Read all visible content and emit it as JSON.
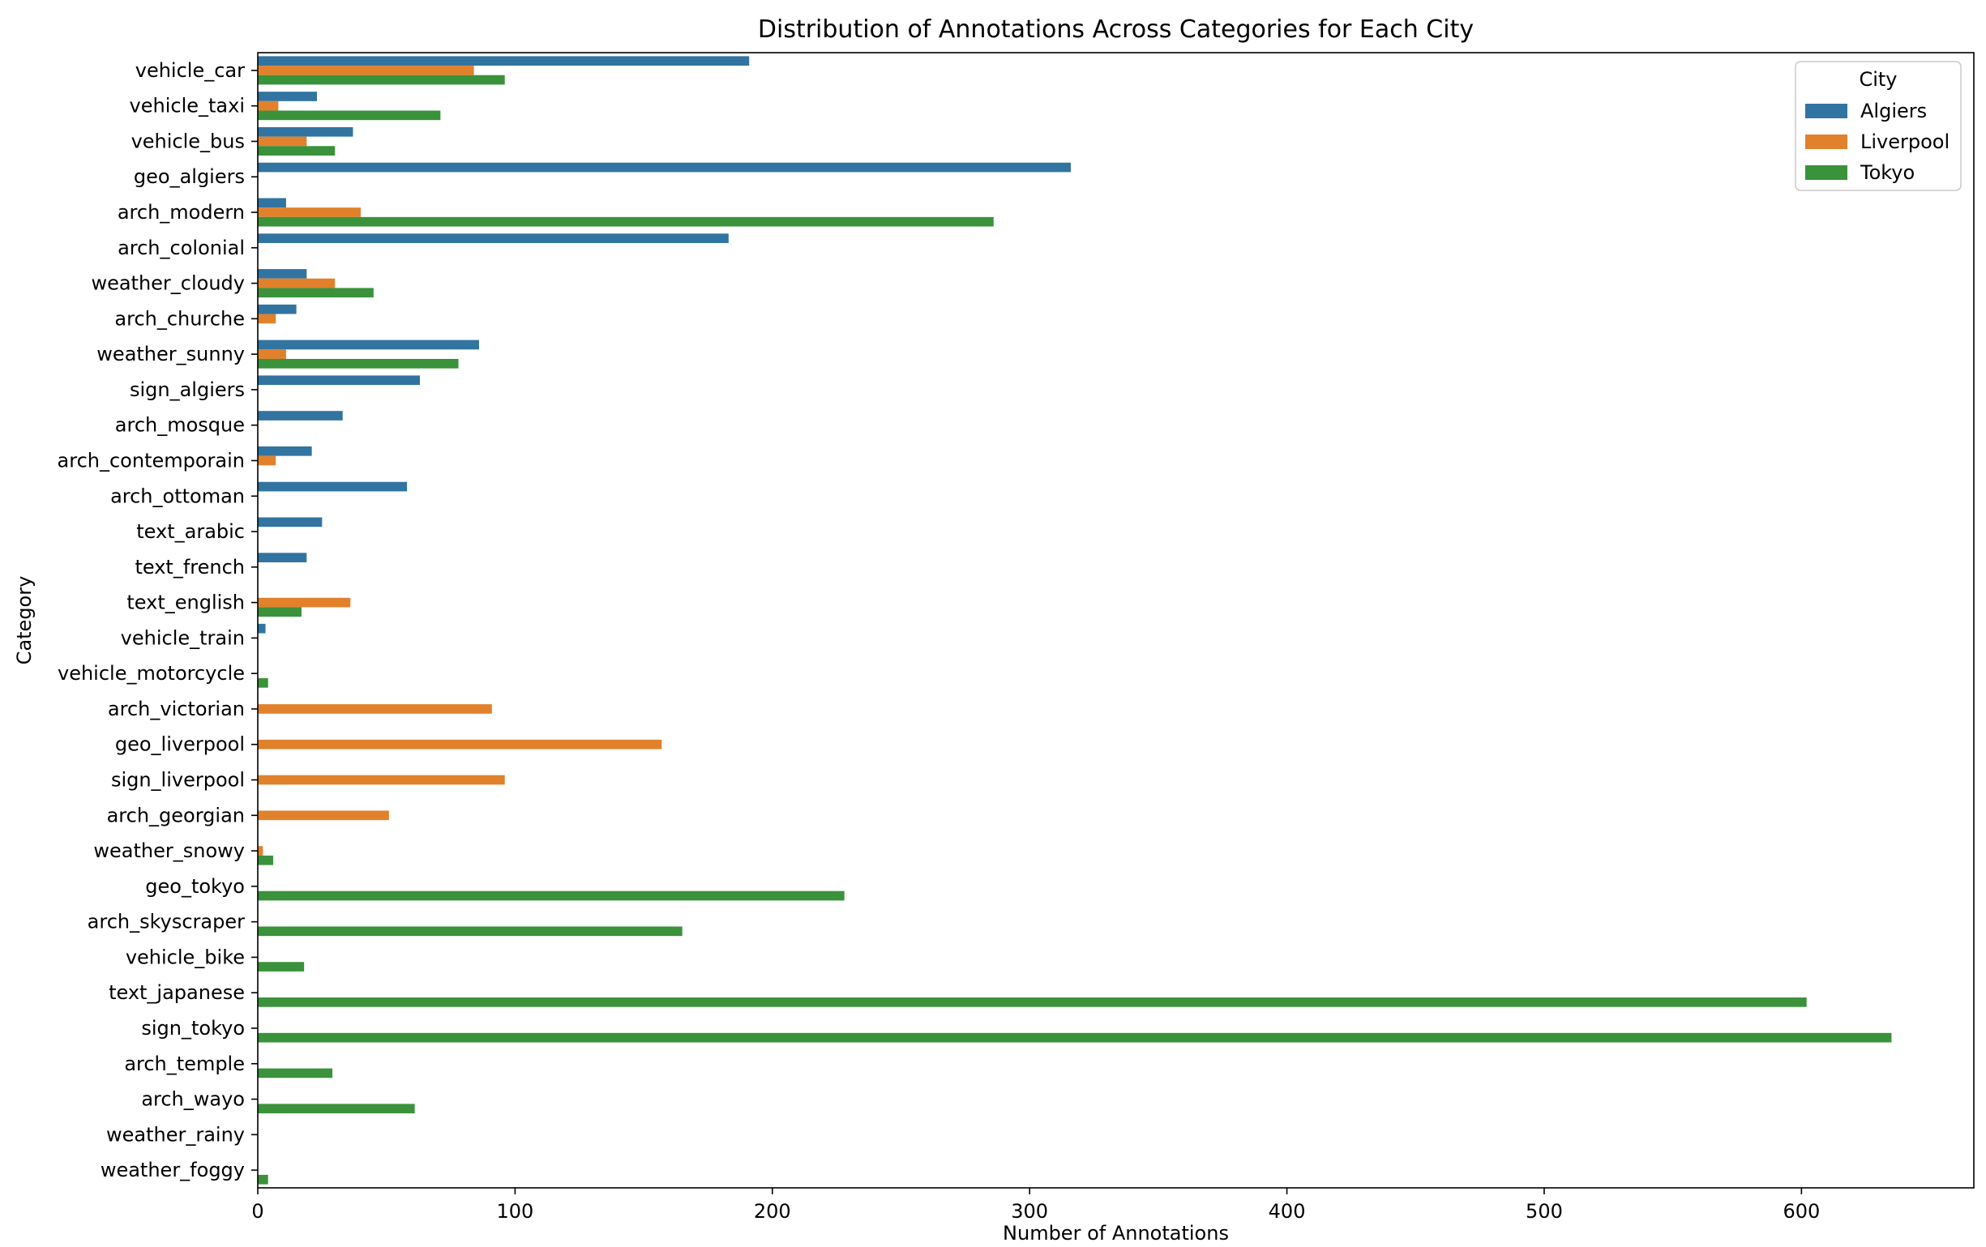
{
  "chart_data": {
    "type": "bar",
    "orientation": "horizontal",
    "title": "Distribution of Annotations Across Categories for Each City",
    "xlabel": "Number of Annotations",
    "ylabel": "Category",
    "xlim": [
      0,
      667
    ],
    "xticks": [
      0,
      100,
      200,
      300,
      400,
      500,
      600
    ],
    "grid": false,
    "legend": {
      "title": "City",
      "placement": "top-right"
    },
    "categories": [
      "vehicle_car",
      "vehicle_taxi",
      "vehicle_bus",
      "geo_algiers",
      "arch_modern",
      "arch_colonial",
      "weather_cloudy",
      "arch_churche",
      "weather_sunny",
      "sign_algiers",
      "arch_mosque",
      "arch_contemporain",
      "arch_ottoman",
      "text_arabic",
      "text_french",
      "text_english",
      "vehicle_train",
      "vehicle_motorcycle",
      "arch_victorian",
      "geo_liverpool",
      "sign_liverpool",
      "arch_georgian",
      "weather_snowy",
      "geo_tokyo",
      "arch_skyscraper",
      "vehicle_bike",
      "text_japanese",
      "sign_tokyo",
      "arch_temple",
      "arch_wayo",
      "weather_rainy",
      "weather_foggy"
    ],
    "series": [
      {
        "name": "Algiers",
        "color": "#3274a1",
        "values": [
          191,
          23,
          37,
          316,
          11,
          183,
          19,
          15,
          86,
          63,
          33,
          21,
          58,
          25,
          19,
          0,
          3,
          0,
          0,
          0,
          0,
          0,
          0,
          0,
          0,
          0,
          0,
          0,
          0,
          0,
          0,
          0
        ]
      },
      {
        "name": "Liverpool",
        "color": "#e1812c",
        "values": [
          84,
          8,
          19,
          0,
          40,
          0,
          30,
          7,
          11,
          0,
          0,
          7,
          0,
          0,
          0,
          36,
          0,
          0,
          91,
          157,
          96,
          51,
          2,
          0,
          0,
          0,
          0,
          0,
          0,
          0,
          0,
          0
        ]
      },
      {
        "name": "Tokyo",
        "color": "#3a923a",
        "values": [
          96,
          71,
          30,
          0,
          286,
          0,
          45,
          0,
          78,
          0,
          0,
          0,
          0,
          0,
          0,
          17,
          0,
          4,
          0,
          0,
          0,
          0,
          6,
          228,
          165,
          18,
          602,
          635,
          29,
          61,
          0,
          4
        ]
      }
    ]
  }
}
